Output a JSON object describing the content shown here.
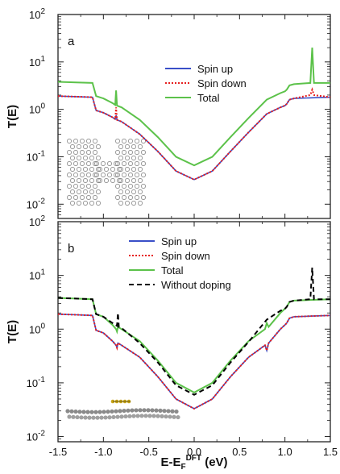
{
  "chart_data": [
    {
      "type": "line",
      "panel_label": "a",
      "ylabel": "T(E)",
      "yscale": "log",
      "ylim": [
        0.005,
        100
      ],
      "xlim": [
        -1.5,
        1.5
      ],
      "y_ticks": [
        {
          "value": 0.01,
          "base": "10",
          "exp": "-2"
        },
        {
          "value": 0.1,
          "base": "10",
          "exp": "-1"
        },
        {
          "value": 1,
          "base": "10",
          "exp": "0"
        },
        {
          "value": 10,
          "base": "10",
          "exp": "1"
        },
        {
          "value": 100,
          "base": "10",
          "exp": "2"
        }
      ],
      "legend_position": "center-right",
      "inset": "molecular-junction-top-view",
      "series": [
        {
          "name": "Spin up",
          "color": "#3a4fc8",
          "style": "solid",
          "x": [
            -1.5,
            -1.3,
            -1.12,
            -1.08,
            -1.0,
            -0.9,
            -0.87,
            -0.86,
            -0.85,
            -0.8,
            -0.6,
            -0.4,
            -0.2,
            0.0,
            0.2,
            0.4,
            0.6,
            0.8,
            0.95,
            1.0,
            1.02,
            1.05,
            1.1,
            1.3,
            1.5
          ],
          "y": [
            1.9,
            1.85,
            1.8,
            0.95,
            0.85,
            0.68,
            0.62,
            0.75,
            0.6,
            0.55,
            0.3,
            0.13,
            0.05,
            0.033,
            0.05,
            0.13,
            0.33,
            0.8,
            1.1,
            1.2,
            1.3,
            1.6,
            1.7,
            1.75,
            1.8
          ]
        },
        {
          "name": "Spin down",
          "color": "#e62020",
          "style": "dotted",
          "x": [
            -1.5,
            -1.3,
            -1.12,
            -1.08,
            -1.0,
            -0.9,
            -0.87,
            -0.86,
            -0.85,
            -0.8,
            -0.6,
            -0.4,
            -0.2,
            0.0,
            0.2,
            0.4,
            0.6,
            0.8,
            0.95,
            1.0,
            1.02,
            1.05,
            1.1,
            1.28,
            1.3,
            1.32,
            1.5
          ],
          "y": [
            1.9,
            1.85,
            1.8,
            0.95,
            0.85,
            0.68,
            0.62,
            1.1,
            0.6,
            0.55,
            0.3,
            0.13,
            0.05,
            0.033,
            0.05,
            0.13,
            0.33,
            0.8,
            1.1,
            1.2,
            1.3,
            1.6,
            1.7,
            2.0,
            2.6,
            2.0,
            1.8
          ]
        },
        {
          "name": "Total",
          "color": "#5cc24a",
          "style": "solid",
          "x": [
            -1.5,
            -1.3,
            -1.12,
            -1.08,
            -1.0,
            -0.9,
            -0.87,
            -0.86,
            -0.85,
            -0.8,
            -0.6,
            -0.4,
            -0.2,
            0.0,
            0.2,
            0.4,
            0.6,
            0.8,
            0.95,
            1.0,
            1.02,
            1.05,
            1.1,
            1.28,
            1.3,
            1.32,
            1.5
          ],
          "y": [
            3.8,
            3.7,
            3.6,
            1.9,
            1.7,
            1.36,
            1.24,
            2.5,
            1.2,
            1.1,
            0.6,
            0.26,
            0.1,
            0.066,
            0.1,
            0.26,
            0.66,
            1.6,
            2.2,
            2.4,
            2.6,
            3.2,
            3.4,
            3.6,
            20,
            3.6,
            3.6
          ]
        }
      ]
    },
    {
      "type": "line",
      "panel_label": "b",
      "ylabel": "T(E)",
      "xlabel_main": "E-E",
      "xlabel_sub": "F",
      "xlabel_sup": "DFT",
      "xlabel_unit": " (eV)",
      "yscale": "log",
      "ylim": [
        0.008,
        100
      ],
      "xlim": [
        -1.5,
        1.5
      ],
      "x_ticks": [
        "-1.5",
        "-1.0",
        "-0.5",
        "0.0",
        "0.5",
        "1.0",
        "1.5"
      ],
      "y_ticks": [
        {
          "value": 0.01,
          "base": "10",
          "exp": "-2"
        },
        {
          "value": 0.1,
          "base": "10",
          "exp": "-1"
        },
        {
          "value": 1,
          "base": "10",
          "exp": "0"
        },
        {
          "value": 10,
          "base": "10",
          "exp": "1"
        },
        {
          "value": 100,
          "base": "10",
          "exp": "2"
        }
      ],
      "legend_position": "top-center",
      "inset": "molecular-junction-side-view",
      "series": [
        {
          "name": "Spin up",
          "color": "#3a4fc8",
          "style": "solid",
          "x": [
            -1.5,
            -1.3,
            -1.12,
            -1.08,
            -1.0,
            -0.9,
            -0.86,
            -0.85,
            -0.84,
            -0.8,
            -0.6,
            -0.4,
            -0.2,
            0.0,
            0.2,
            0.4,
            0.6,
            0.78,
            0.8,
            0.82,
            0.95,
            1.0,
            1.02,
            1.05,
            1.1,
            1.3,
            1.5
          ],
          "y": [
            1.9,
            1.85,
            1.8,
            0.95,
            0.85,
            0.6,
            0.5,
            0.45,
            0.55,
            0.5,
            0.3,
            0.13,
            0.05,
            0.033,
            0.05,
            0.13,
            0.3,
            0.5,
            0.4,
            0.55,
            1.0,
            1.2,
            1.3,
            1.6,
            1.7,
            1.75,
            1.8
          ]
        },
        {
          "name": "Spin down",
          "color": "#e62020",
          "style": "dotted",
          "x": [
            -1.5,
            -1.3,
            -1.12,
            -1.08,
            -1.0,
            -0.9,
            -0.86,
            -0.85,
            -0.84,
            -0.8,
            -0.6,
            -0.4,
            -0.2,
            0.0,
            0.2,
            0.4,
            0.6,
            0.78,
            0.8,
            0.82,
            0.95,
            1.0,
            1.02,
            1.05,
            1.1,
            1.3,
            1.5
          ],
          "y": [
            1.9,
            1.85,
            1.8,
            0.95,
            0.85,
            0.6,
            0.5,
            0.45,
            0.55,
            0.5,
            0.3,
            0.13,
            0.05,
            0.033,
            0.05,
            0.13,
            0.3,
            0.5,
            0.4,
            0.55,
            1.0,
            1.2,
            1.3,
            1.6,
            1.7,
            1.75,
            1.8
          ]
        },
        {
          "name": "Total",
          "color": "#5cc24a",
          "style": "solid",
          "x": [
            -1.5,
            -1.3,
            -1.12,
            -1.08,
            -1.0,
            -0.9,
            -0.86,
            -0.85,
            -0.84,
            -0.8,
            -0.6,
            -0.4,
            -0.2,
            0.0,
            0.2,
            0.4,
            0.6,
            0.78,
            0.8,
            0.82,
            0.95,
            1.0,
            1.02,
            1.05,
            1.1,
            1.3,
            1.5
          ],
          "y": [
            3.8,
            3.7,
            3.6,
            1.9,
            1.7,
            1.2,
            1.0,
            0.9,
            1.1,
            1.0,
            0.6,
            0.26,
            0.1,
            0.066,
            0.1,
            0.26,
            0.6,
            1.0,
            1.3,
            1.1,
            2.0,
            2.4,
            2.6,
            3.2,
            3.4,
            3.5,
            3.6
          ]
        },
        {
          "name": "Without doping",
          "color": "#000000",
          "style": "dashed",
          "x": [
            -1.5,
            -1.3,
            -1.12,
            -1.08,
            -1.0,
            -0.9,
            -0.85,
            -0.84,
            -0.83,
            -0.8,
            -0.6,
            -0.4,
            -0.2,
            0.0,
            0.2,
            0.4,
            0.6,
            0.8,
            0.95,
            1.0,
            1.02,
            1.05,
            1.1,
            1.28,
            1.3,
            1.32,
            1.5
          ],
          "y": [
            3.8,
            3.7,
            3.6,
            1.9,
            1.7,
            1.3,
            1.15,
            2.0,
            1.1,
            1.05,
            0.55,
            0.24,
            0.09,
            0.06,
            0.09,
            0.24,
            0.58,
            1.5,
            2.2,
            2.4,
            2.6,
            3.2,
            3.4,
            3.6,
            14,
            3.6,
            3.6
          ]
        }
      ]
    }
  ]
}
